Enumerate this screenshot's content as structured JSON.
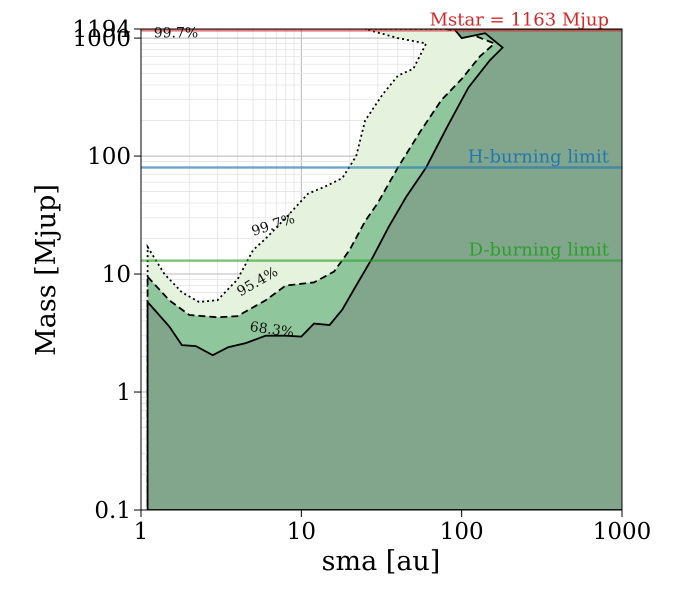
{
  "chart_data": {
    "type": "contour",
    "xlabel": "sma [au]",
    "ylabel": "Mass [Mjup]",
    "x_scale": "log",
    "y_scale": "log",
    "xlim": [
      1,
      1000
    ],
    "ylim": [
      0.1,
      1194
    ],
    "x_ticks": [
      {
        "value": 1,
        "label": "1"
      },
      {
        "value": 10,
        "label": "10"
      },
      {
        "value": 100,
        "label": "100"
      },
      {
        "value": 1000,
        "label": "1000"
      }
    ],
    "y_ticks": [
      {
        "value": 0.1,
        "label": "0.1"
      },
      {
        "value": 1,
        "label": "1"
      },
      {
        "value": 10,
        "label": "10"
      },
      {
        "value": 100,
        "label": "100"
      },
      {
        "value": 1000,
        "label": "1000"
      },
      {
        "value": 1194,
        "label": "1194"
      }
    ],
    "grid": true,
    "reference_lines": [
      {
        "label": "Mstar = 1163 Mjup",
        "mass": 1163,
        "color": "#d62728"
      },
      {
        "label": "H-burning limit",
        "mass": 80,
        "color": "#1f77b4"
      },
      {
        "label": "D-burning limit",
        "mass": 13,
        "color": "#2ca02c"
      }
    ],
    "contours": [
      {
        "label": "68.3%",
        "style": "solid",
        "fill": "#81a68b",
        "points": [
          [
            1.1,
            5.8
          ],
          [
            1.5,
            3.6
          ],
          [
            1.8,
            2.5
          ],
          [
            2.2,
            2.45
          ],
          [
            2.8,
            2.05
          ],
          [
            3.5,
            2.4
          ],
          [
            4.5,
            2.6
          ],
          [
            6.0,
            3.0
          ],
          [
            8.0,
            3.0
          ],
          [
            10.0,
            2.95
          ],
          [
            12.0,
            3.8
          ],
          [
            15.0,
            3.7
          ],
          [
            18.0,
            5.0
          ],
          [
            22.0,
            8.0
          ],
          [
            28.0,
            14.0
          ],
          [
            35.0,
            25.0
          ],
          [
            45.0,
            45.0
          ],
          [
            60.0,
            80.0
          ],
          [
            80.0,
            170.0
          ],
          [
            110.0,
            380.0
          ],
          [
            150.0,
            650.0
          ],
          [
            180.0,
            830.0
          ],
          [
            140.0,
            1100.0
          ],
          [
            100.0,
            1000.0
          ],
          [
            90.0,
            1194.0
          ],
          [
            1194.0,
            1194.0
          ],
          [
            1194.0,
            0.1
          ],
          [
            1.1,
            0.1
          ]
        ]
      },
      {
        "label": "95.4%",
        "style": "dashed",
        "fill": "#8fc69b",
        "points": [
          [
            1.1,
            9.5
          ],
          [
            1.5,
            6.0
          ],
          [
            2.0,
            4.5
          ],
          [
            3.0,
            4.3
          ],
          [
            4.0,
            4.4
          ],
          [
            6.0,
            6.0
          ],
          [
            8.0,
            8.0
          ],
          [
            12.0,
            8.5
          ],
          [
            16.0,
            10.5
          ],
          [
            20.0,
            16.0
          ],
          [
            25.0,
            28.0
          ],
          [
            30.0,
            40.0
          ],
          [
            40.0,
            80.0
          ],
          [
            55.0,
            160.0
          ],
          [
            75.0,
            300.0
          ],
          [
            100.0,
            450.0
          ],
          [
            130.0,
            700.0
          ],
          [
            160.0,
            900.0
          ],
          [
            120.0,
            1050.0
          ],
          [
            80.0,
            1194.0
          ],
          [
            1194.0,
            1194.0
          ],
          [
            1194.0,
            0.1
          ],
          [
            1.1,
            0.1
          ]
        ]
      },
      {
        "label": "99.7%",
        "style": "dotted",
        "fill": "#e5f2dd",
        "points": [
          [
            1.1,
            17.0
          ],
          [
            1.4,
            10.0
          ],
          [
            1.8,
            7.0
          ],
          [
            2.3,
            5.8
          ],
          [
            3.0,
            6.0
          ],
          [
            4.0,
            9.0
          ],
          [
            5.0,
            16.0
          ],
          [
            6.0,
            20.0
          ],
          [
            8.0,
            30.0
          ],
          [
            11.0,
            48.0
          ],
          [
            14.0,
            55.0
          ],
          [
            18.0,
            65.0
          ],
          [
            22.0,
            100.0
          ],
          [
            25.0,
            200.0
          ],
          [
            32.0,
            330.0
          ],
          [
            40.0,
            480.0
          ],
          [
            50.0,
            550.0
          ],
          [
            60.0,
            900.0
          ],
          [
            40.0,
            1000.0
          ],
          [
            25.0,
            1194.0
          ],
          [
            1194.0,
            1194.0
          ],
          [
            1194.0,
            0.1
          ],
          [
            1.1,
            0.1
          ]
        ]
      }
    ],
    "contour_labels": [
      {
        "text": "99.7%",
        "x": 6.8,
        "y": 24.0,
        "angle": -18
      },
      {
        "text": "95.4%",
        "x": 5.5,
        "y": 8.0,
        "angle": -30
      },
      {
        "text": "68.3%",
        "x": 6.5,
        "y": 3.1,
        "angle": 8
      },
      {
        "text": "99.7%",
        "x": 1.2,
        "y": 1010.0,
        "angle": 0
      }
    ]
  }
}
